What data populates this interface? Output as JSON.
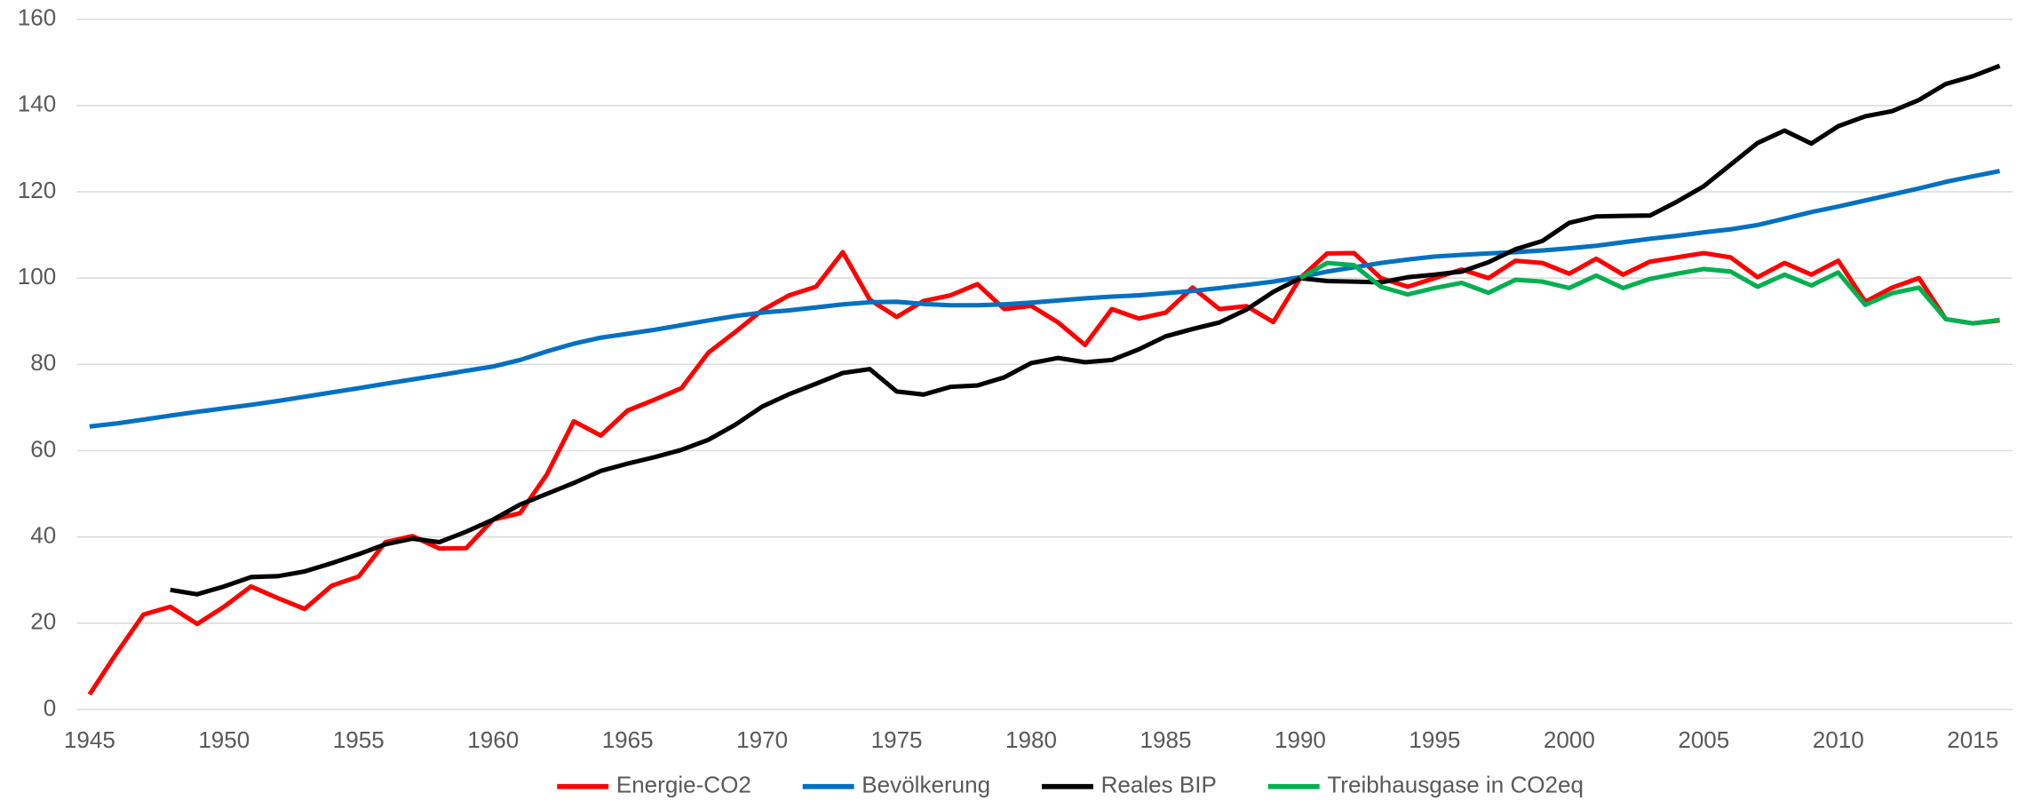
{
  "chart_data": {
    "type": "line",
    "x": [
      1945,
      1946,
      1947,
      1948,
      1949,
      1950,
      1951,
      1952,
      1953,
      1954,
      1955,
      1956,
      1957,
      1958,
      1959,
      1960,
      1961,
      1962,
      1963,
      1964,
      1965,
      1966,
      1967,
      1968,
      1969,
      1970,
      1971,
      1972,
      1973,
      1974,
      1975,
      1976,
      1977,
      1978,
      1979,
      1980,
      1981,
      1982,
      1983,
      1984,
      1985,
      1986,
      1987,
      1988,
      1989,
      1990,
      1991,
      1992,
      1993,
      1994,
      1995,
      1996,
      1997,
      1998,
      1999,
      2000,
      2001,
      2002,
      2003,
      2004,
      2005,
      2006,
      2007,
      2008,
      2009,
      2010,
      2011,
      2012,
      2013,
      2014,
      2015,
      2016
    ],
    "series": [
      {
        "name": "Energie-CO2",
        "color": "#ff0000",
        "values": [
          3.5,
          13,
          22,
          23.8,
          19.8,
          23.8,
          28.5,
          25.8,
          23.3,
          28.7,
          30.8,
          38.8,
          40.2,
          37.3,
          37.4,
          44,
          45.5,
          54.5,
          66.8,
          63.5,
          69.3,
          71.8,
          74.5,
          82.7,
          87.5,
          92.5,
          96,
          98,
          106,
          95,
          91,
          94.7,
          96,
          98.6,
          92.8,
          93.6,
          89.7,
          84.5,
          92.8,
          90.6,
          92,
          97.8,
          92.8,
          93.5,
          89.8,
          100,
          105.7,
          105.8,
          100,
          98,
          100,
          102,
          100,
          104,
          103.5,
          101,
          104.5,
          100.8,
          103.8,
          104.8,
          105.8,
          104.8,
          100.2,
          103.5,
          100.8,
          104,
          94.5,
          97.8,
          100,
          90.5,
          89.5,
          90.2
        ]
      },
      {
        "name": "Bevölkerung",
        "color": "#0070c0",
        "values": [
          65.6,
          66.3,
          67.2,
          68.1,
          69,
          69.8,
          70.6,
          71.5,
          72.5,
          73.5,
          74.5,
          75.5,
          76.5,
          77.5,
          78.5,
          79.5,
          81,
          83,
          84.8,
          86.2,
          87.1,
          88,
          89.1,
          90.2,
          91.2,
          92,
          92.5,
          93.2,
          93.9,
          94.4,
          94.5,
          94,
          93.7,
          93.7,
          93.9,
          94.3,
          94.8,
          95.3,
          95.7,
          96,
          96.5,
          97,
          97.7,
          98.4,
          99.2,
          100.2,
          101.5,
          102.5,
          103.5,
          104.3,
          105,
          105.4,
          105.7,
          106,
          106.4,
          106.9,
          107.5,
          108.3,
          109.1,
          109.8,
          110.6,
          111.3,
          112.3,
          113.8,
          115.3,
          116.6,
          118,
          119.4,
          120.8,
          122.3,
          123.6,
          124.8
        ]
      },
      {
        "name": "Reales BIP",
        "color": "#000000",
        "values": [
          null,
          null,
          null,
          27.7,
          26.7,
          28.5,
          30.7,
          30.9,
          32,
          33.9,
          36,
          38.3,
          39.6,
          38.8,
          41.2,
          44,
          47.5,
          50,
          52.5,
          55.3,
          57,
          58.5,
          60.2,
          62.5,
          66,
          70.2,
          73.1,
          75.5,
          78,
          78.9,
          73.7,
          73,
          74.8,
          75.1,
          77,
          80.3,
          81.5,
          80.5,
          81,
          83.5,
          86.5,
          88.2,
          89.7,
          92.7,
          96.8,
          100,
          99.3,
          99.2,
          99,
          100.2,
          100.8,
          101.5,
          103.7,
          106.7,
          108.6,
          112.8,
          114.3,
          114.4,
          114.5,
          117.7,
          121.3,
          126.3,
          131.3,
          134.2,
          131.2,
          135.2,
          137.5,
          138.7,
          141.3,
          145,
          146.8,
          149.2
        ]
      },
      {
        "name": "Treibhausgase in CO2eq",
        "color": "#00b050",
        "values": [
          null,
          null,
          null,
          null,
          null,
          null,
          null,
          null,
          null,
          null,
          null,
          null,
          null,
          null,
          null,
          null,
          null,
          null,
          null,
          null,
          null,
          null,
          null,
          null,
          null,
          null,
          null,
          null,
          null,
          null,
          null,
          null,
          null,
          null,
          null,
          null,
          null,
          null,
          null,
          null,
          null,
          null,
          null,
          null,
          null,
          100,
          103.5,
          103,
          98,
          96.2,
          97.7,
          98.9,
          96.6,
          99.6,
          99.2,
          97.7,
          100.6,
          97.7,
          99.8,
          101,
          102.1,
          101.5,
          98,
          100.8,
          98.3,
          101.3,
          93.8,
          96.5,
          97.8,
          90.5,
          89.5,
          90.3
        ]
      }
    ],
    "xlim": [
      1945,
      2016
    ],
    "xticks": [
      1945,
      1950,
      1955,
      1960,
      1965,
      1970,
      1975,
      1980,
      1985,
      1990,
      1995,
      2000,
      2005,
      2010,
      2015
    ],
    "ylim": [
      0,
      160
    ],
    "yticks": [
      0,
      20,
      40,
      60,
      80,
      100,
      120,
      140,
      160
    ],
    "grid": true,
    "legend": "bottom"
  }
}
